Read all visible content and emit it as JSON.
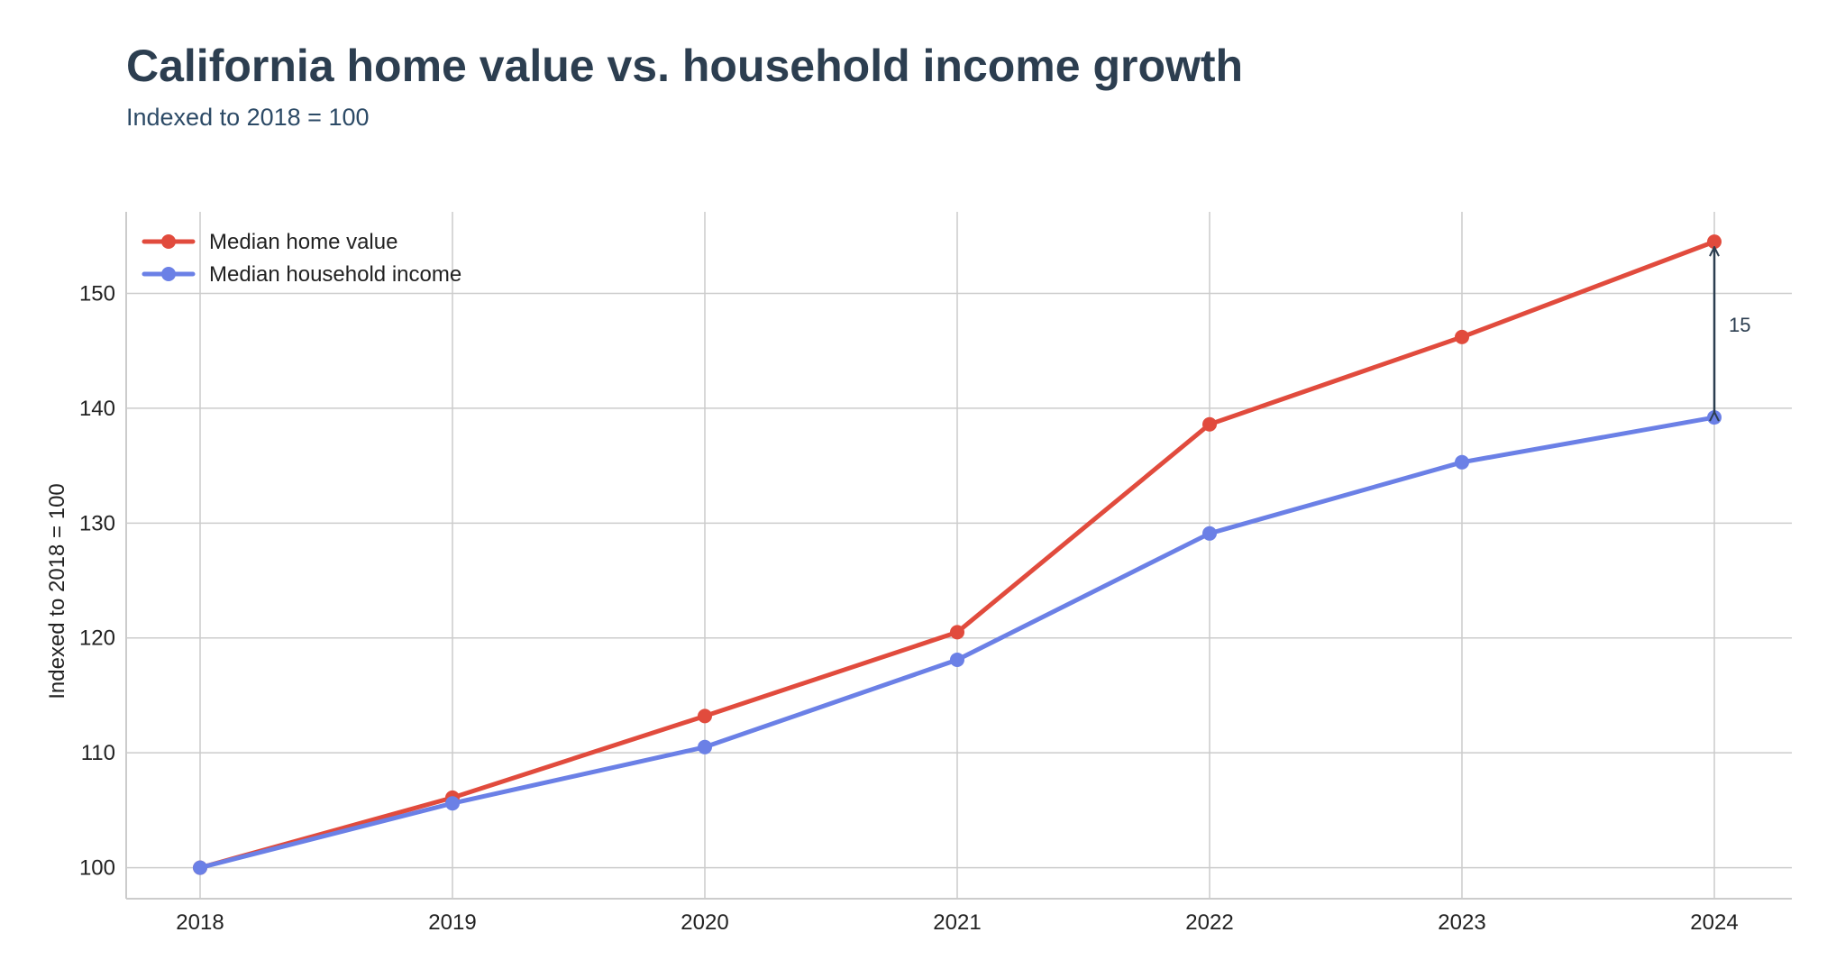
{
  "chart_data": {
    "type": "line",
    "title": "California home value vs. household income growth",
    "subtitle": "Indexed to 2018 = 100",
    "xlabel": "",
    "ylabel": "Indexed to 2018 = 100",
    "categories": [
      "2018",
      "2019",
      "2020",
      "2021",
      "2022",
      "2023",
      "2024"
    ],
    "yticks": [
      100,
      110,
      120,
      130,
      140,
      150
    ],
    "ylim": [
      97.3,
      157.1
    ],
    "grid": true,
    "legend_position": "top-left",
    "series": [
      {
        "name": "Median home value",
        "color": "#e14b3d",
        "values": [
          100.0,
          106.1,
          113.2,
          120.5,
          138.6,
          146.2,
          154.5
        ]
      },
      {
        "name": "Median household income",
        "color": "#6b80e6",
        "values": [
          100.0,
          105.6,
          110.5,
          118.1,
          129.1,
          135.3,
          139.2
        ]
      }
    ],
    "annotations": [
      {
        "type": "double-arrow",
        "x": "2024",
        "y_from": 139.2,
        "y_to": 154.5,
        "label": "15"
      }
    ]
  }
}
